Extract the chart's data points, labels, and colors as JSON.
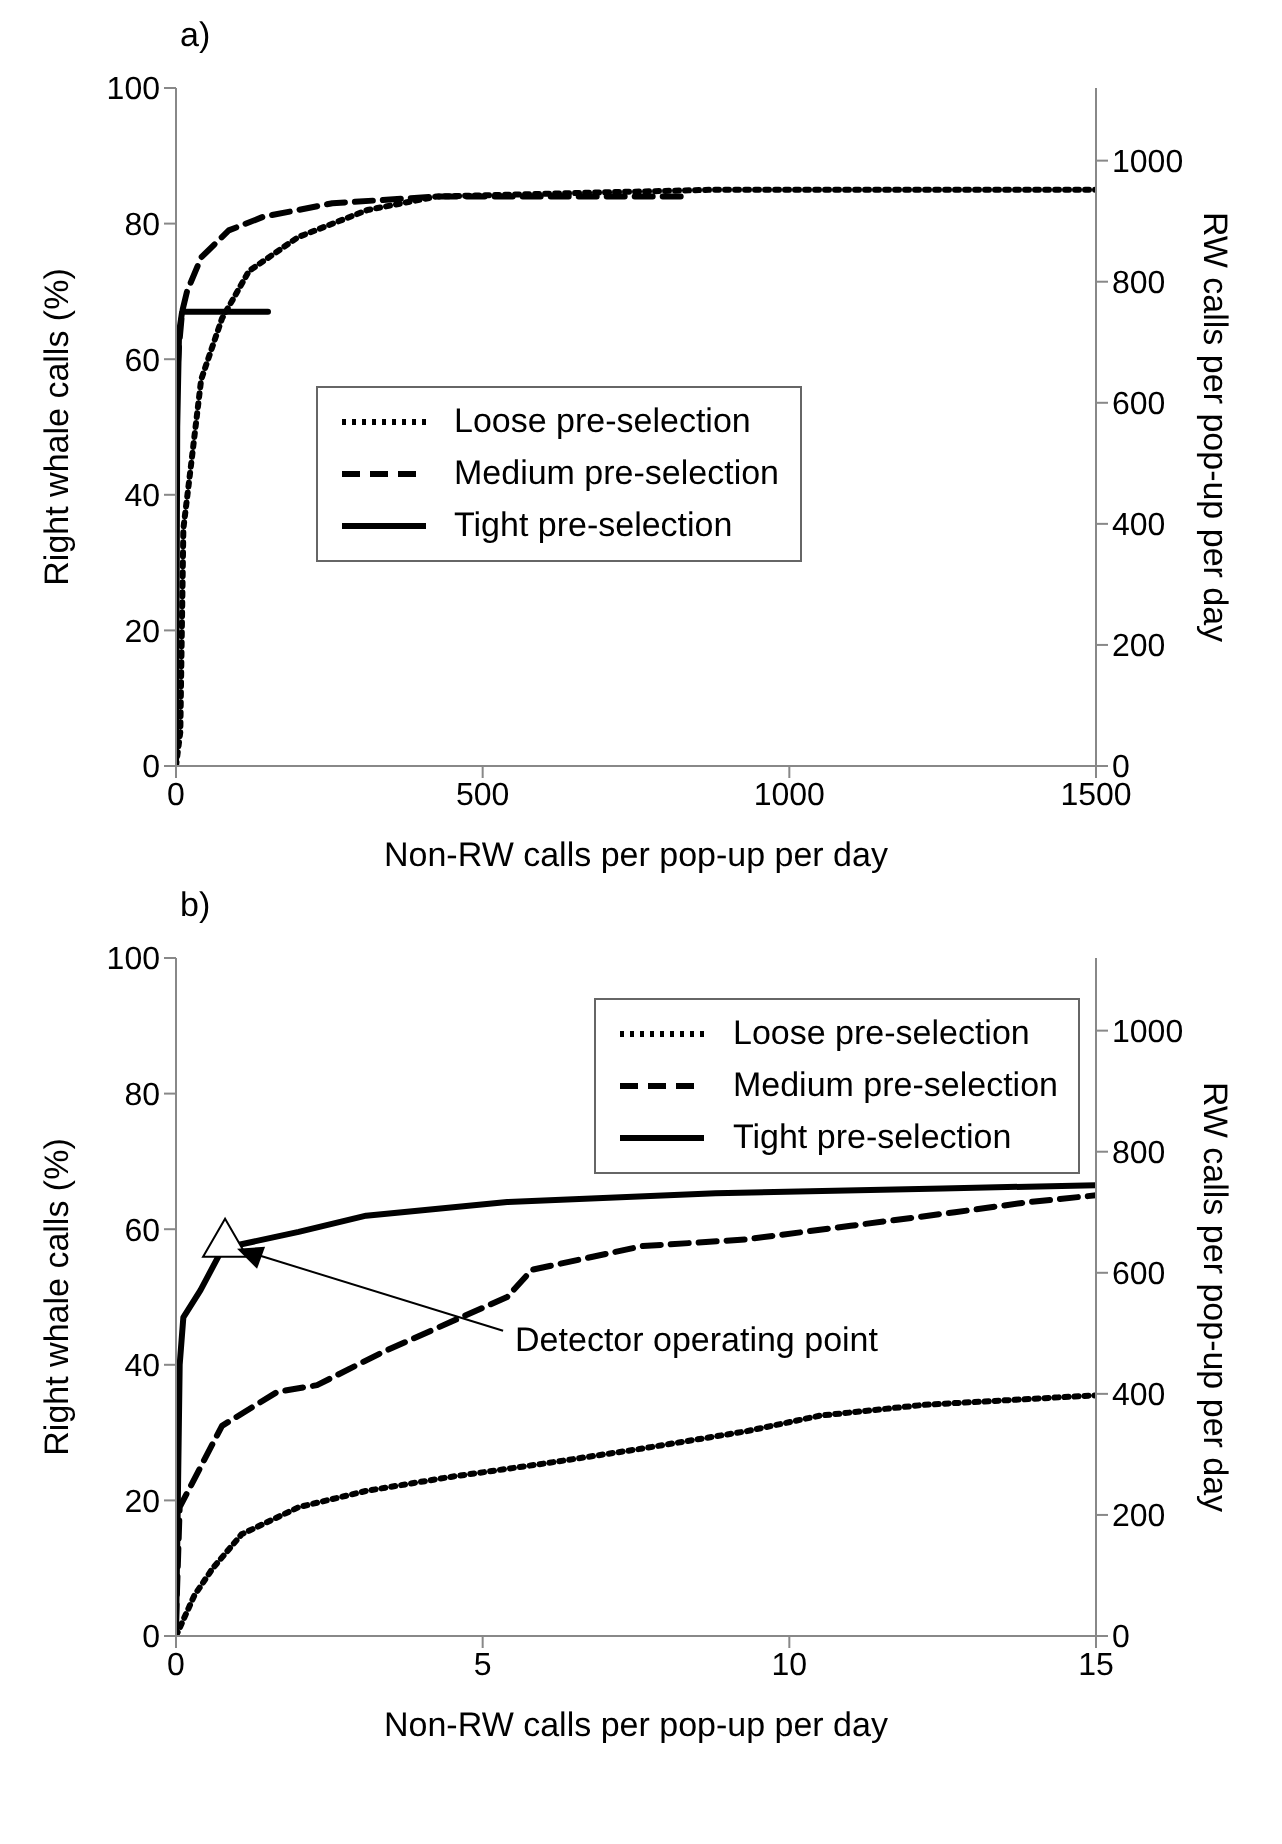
{
  "chart_data": [
    {
      "type": "line",
      "title": "a)",
      "xlabel": "Non-RW calls per pop-up per day",
      "ylabel": "Right whale calls (%)",
      "y2label": "RW calls per pop-up per day",
      "xlim": [
        0,
        1500
      ],
      "xticks": [
        0,
        500,
        1000,
        1500
      ],
      "ylim": [
        0,
        100
      ],
      "yticks": [
        0,
        20,
        40,
        60,
        80,
        100
      ],
      "y2lim": [
        0,
        1120
      ],
      "y2ticks": [
        0,
        200,
        400,
        600,
        800,
        1000
      ],
      "grid": false,
      "legend": "center",
      "marker": "none",
      "series": [
        {
          "name": "Loose pre-selection",
          "color": "#000000",
          "line_style": "dotted",
          "x": [
            0,
            7,
            12,
            24,
            41,
            75,
            119,
            199,
            312,
            425,
            877,
            1500
          ],
          "values": [
            0,
            5,
            35,
            44,
            57,
            66,
            73,
            78,
            82,
            84,
            85,
            85
          ]
        },
        {
          "name": "Medium pre-selection",
          "color": "#000000",
          "line_style": "dashed",
          "x": [
            0,
            5,
            10,
            18,
            41,
            86,
            142,
            255,
            425,
            830
          ],
          "values": [
            55,
            62,
            67,
            70,
            75,
            79,
            81,
            83,
            84,
            84
          ]
        },
        {
          "name": "Tight pre-selection",
          "color": "#000000",
          "line_style": "solid",
          "x": [
            0,
            2,
            5,
            10,
            150
          ],
          "values": [
            0,
            50,
            64,
            67,
            67
          ]
        }
      ]
    },
    {
      "type": "line",
      "title": "b)",
      "xlabel": "Non-RW calls per pop-up per day",
      "ylabel": "Right whale calls (%)",
      "y2label": "RW calls per pop-up per day",
      "xlim": [
        0,
        15
      ],
      "xticks": [
        0,
        5,
        10,
        15
      ],
      "ylim": [
        0,
        100
      ],
      "yticks": [
        0,
        20,
        40,
        60,
        80,
        100
      ],
      "y2lim": [
        0,
        1120
      ],
      "y2ticks": [
        0,
        200,
        400,
        600,
        800,
        1000
      ],
      "grid": false,
      "legend": "top right",
      "marker": "none",
      "annotations": [
        "Detector operating point"
      ],
      "series": [
        {
          "name": "Loose pre-selection",
          "color": "#000000",
          "line_style": "dotted",
          "x": [
            0,
            0.3,
            0.6,
            1.07,
            2,
            3.1,
            4.5,
            5.9,
            7.5,
            9.3,
            10.5,
            12.2,
            15
          ],
          "values": [
            0,
            6,
            10,
            15,
            19,
            21.4,
            23.5,
            25.3,
            27.5,
            30.2,
            32.5,
            34.1,
            35.5
          ]
        },
        {
          "name": "Medium pre-selection",
          "color": "#000000",
          "line_style": "dashed",
          "x": [
            0,
            0.06,
            0.75,
            1.65,
            2.3,
            3.4,
            5.4,
            5.8,
            7.6,
            9.3,
            11,
            12.7,
            13.9,
            15
          ],
          "values": [
            2,
            19,
            31,
            36,
            37,
            42,
            50,
            54,
            57.5,
            58.5,
            60.5,
            62.5,
            64,
            65
          ]
        },
        {
          "name": "Tight pre-selection",
          "color": "#000000",
          "line_style": "solid",
          "x": [
            0,
            0.06,
            0.12,
            0.4,
            0.75,
            0.97,
            2,
            3.1,
            5.4,
            8.8,
            12.5,
            15
          ],
          "values": [
            0,
            40,
            47,
            51,
            57,
            57.6,
            59.6,
            62,
            64,
            65.3,
            66,
            66.5
          ]
        },
        {
          "type": "scatter",
          "color": "#ffffff",
          "marker": "triangle",
          "x": [
            0.8
          ],
          "values": [
            58
          ]
        }
      ]
    }
  ]
}
